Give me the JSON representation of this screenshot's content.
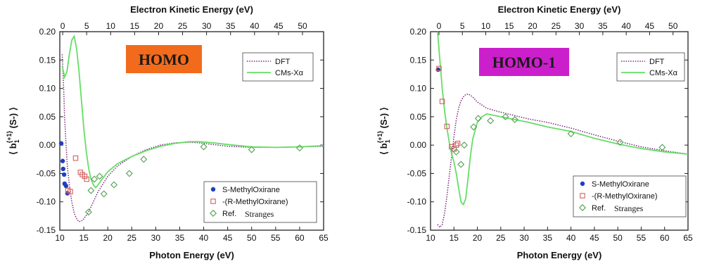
{
  "chart_data": [
    {
      "type": "line",
      "badge": {
        "text": "HOMO",
        "bg": "#f26b1c",
        "fg": "#1a1a1a"
      },
      "xlabel": "Photon Energy (eV)",
      "top_xlabel": "Electron Kinetic Energy (eV)",
      "ylabel_parts": [
        "⟨ b",
        "1",
        "{+1}",
        " (S-) ⟩"
      ],
      "xlim": [
        10,
        65
      ],
      "ylim": [
        -0.15,
        0.2
      ],
      "x_ticks": [
        10,
        15,
        20,
        25,
        30,
        35,
        40,
        45,
        50,
        55,
        60,
        65
      ],
      "y_ticks": [
        -0.15,
        -0.1,
        -0.05,
        0.0,
        0.05,
        0.1,
        0.15,
        0.2
      ],
      "y_tick_labels": [
        "-0.15",
        "-0.10",
        "-0.05",
        "0.00",
        "0.05",
        "0.10",
        "0.15",
        "0.20"
      ],
      "top_xlim": [
        -0.6,
        54.4
      ],
      "top_ticks": [
        0,
        5,
        10,
        15,
        20,
        25,
        30,
        35,
        40,
        45,
        50
      ],
      "series": [
        {
          "name": "DFT",
          "style": "dotted",
          "color": "#7a2a7a",
          "x": [
            10.5,
            10.8,
            11.0,
            11.3,
            11.6,
            12,
            12.5,
            13,
            13.5,
            14,
            14.5,
            15,
            16,
            17,
            18,
            20,
            22,
            25,
            28,
            31,
            34,
            37,
            39,
            42,
            45,
            50,
            55,
            60,
            65
          ],
          "y": [
            0.16,
            0.1,
            0.05,
            0.0,
            -0.04,
            -0.07,
            -0.1,
            -0.12,
            -0.13,
            -0.135,
            -0.134,
            -0.13,
            -0.118,
            -0.1,
            -0.082,
            -0.055,
            -0.037,
            -0.02,
            -0.008,
            0.0,
            0.004,
            0.005,
            0.004,
            0.001,
            -0.002,
            -0.004,
            -0.004,
            -0.003,
            -0.002
          ]
        },
        {
          "name": "CMs-Xα",
          "style": "solid",
          "color": "#66dd66",
          "x": [
            10.5,
            11,
            11.5,
            12,
            12.5,
            13,
            13.5,
            14,
            14.5,
            15,
            15.5,
            16,
            16.5,
            17,
            17.5,
            18,
            19,
            20,
            22,
            25,
            28,
            31,
            34,
            37,
            39,
            42,
            45,
            50,
            55,
            60,
            65
          ],
          "y": [
            0.14,
            0.12,
            0.13,
            0.16,
            0.185,
            0.192,
            0.17,
            0.13,
            0.08,
            0.03,
            -0.01,
            -0.04,
            -0.06,
            -0.07,
            -0.075,
            -0.07,
            -0.058,
            -0.047,
            -0.033,
            -0.02,
            -0.01,
            -0.002,
            0.003,
            0.006,
            0.006,
            0.004,
            0.001,
            -0.003,
            -0.004,
            -0.003,
            -0.001
          ]
        }
      ],
      "points": [
        {
          "name": "S-MethylOxirane",
          "marker": "filled-circle",
          "color": "#1f3fbf",
          "x": [
            10.3,
            10.6,
            10.7,
            10.9,
            11.0,
            11.3,
            11.6
          ],
          "y": [
            0.003,
            -0.028,
            -0.042,
            -0.052,
            -0.068,
            -0.072,
            -0.085
          ]
        },
        {
          "name": "-(R-MethylOxirane)",
          "marker": "open-square",
          "color": "#d06060",
          "x": [
            11.7,
            12.2,
            13.3,
            14.3,
            14.7,
            15.2,
            15.6
          ],
          "y": [
            -0.08,
            -0.082,
            -0.023,
            -0.048,
            -0.052,
            -0.055,
            -0.06
          ]
        },
        {
          "name": "Ref.",
          "marker": "open-diamond",
          "color": "#50a050",
          "x": [
            16.0,
            16.5,
            17.2,
            18.3,
            19.2,
            21.3,
            24.5,
            27.5,
            40.0,
            50.0,
            60.0
          ],
          "y": [
            -0.118,
            -0.08,
            -0.06,
            -0.055,
            -0.086,
            -0.07,
            -0.05,
            -0.025,
            -0.003,
            -0.008,
            -0.005
          ]
        }
      ],
      "legend_lines": [
        {
          "label": "DFT"
        },
        {
          "label": "CMs-Xα"
        }
      ],
      "legend_markers": [
        {
          "label": "S-MethylOxirane"
        },
        {
          "label": "-(R-MethylOxirane)"
        },
        {
          "label": "Ref.",
          "extra": "Stranges"
        }
      ]
    },
    {
      "type": "line",
      "badge": {
        "text": "HOMO-1",
        "bg": "#cc1fcc",
        "fg": "#1a1a1a"
      },
      "xlabel": "Photon Energy (eV)",
      "top_xlabel": "Electron Kinetic Energy (eV)",
      "ylabel_parts": [
        "⟨ b",
        "1",
        "{+1}",
        " (S-) ⟩"
      ],
      "xlim": [
        10,
        65
      ],
      "ylim": [
        -0.15,
        0.2
      ],
      "x_ticks": [
        10,
        15,
        20,
        25,
        30,
        35,
        40,
        45,
        50,
        55,
        60,
        65
      ],
      "y_ticks": [
        -0.15,
        -0.1,
        -0.05,
        0.0,
        0.05,
        0.1,
        0.15,
        0.2
      ],
      "y_tick_labels": [
        "-0.15",
        "-0.10",
        "-0.05",
        "0.00",
        "0.05",
        "0.10",
        "0.15",
        "0.20"
      ],
      "top_xlim": [
        -1.8,
        53.2
      ],
      "top_ticks": [
        0,
        5,
        10,
        15,
        20,
        25,
        30,
        35,
        40,
        45,
        50
      ],
      "series": [
        {
          "name": "DFT",
          "style": "dotted",
          "color": "#7a2a7a",
          "x": [
            11.5,
            12,
            12.5,
            13,
            13.5,
            14,
            14.5,
            15,
            15.5,
            16,
            16.5,
            17,
            17.5,
            18,
            18.5,
            19,
            20,
            22,
            25,
            28,
            31,
            35,
            40,
            45,
            50,
            55,
            60,
            65
          ],
          "y": [
            -0.14,
            -0.145,
            -0.14,
            -0.12,
            -0.09,
            -0.055,
            -0.02,
            0.015,
            0.045,
            0.065,
            0.078,
            0.085,
            0.089,
            0.09,
            0.088,
            0.085,
            0.076,
            0.065,
            0.058,
            0.052,
            0.046,
            0.04,
            0.03,
            0.018,
            0.007,
            -0.003,
            -0.01,
            -0.016
          ]
        },
        {
          "name": "CMs-Xα",
          "style": "solid",
          "color": "#66dd66",
          "x": [
            11.5,
            12,
            12.5,
            13,
            13.5,
            14,
            14.5,
            15,
            15.5,
            16,
            16.5,
            17,
            17.5,
            18,
            18.5,
            19,
            20,
            21,
            22,
            25,
            28,
            31,
            35,
            40,
            45,
            50,
            55,
            60,
            65
          ],
          "y": [
            0.2,
            0.15,
            0.1,
            0.06,
            0.03,
            0.005,
            -0.015,
            -0.03,
            -0.05,
            -0.075,
            -0.1,
            -0.105,
            -0.095,
            -0.06,
            -0.02,
            0.01,
            0.04,
            0.05,
            0.055,
            0.05,
            0.045,
            0.04,
            0.032,
            0.024,
            0.012,
            0.002,
            -0.006,
            -0.012,
            -0.016
          ]
        }
      ],
      "points": [
        {
          "name": "S-MethylOxirane",
          "marker": "filled-circle",
          "color": "#1f3fbf",
          "x": [
            11.6
          ],
          "y": [
            0.133
          ]
        },
        {
          "name": "-(R-MethylOxirane)",
          "marker": "open-square",
          "color": "#d06060",
          "x": [
            11.8,
            12.5,
            13.5,
            14.5,
            15.0,
            15.5,
            15.8
          ],
          "y": [
            0.135,
            0.077,
            0.033,
            -0.003,
            -0.007,
            0.0,
            0.003
          ]
        },
        {
          "name": "Ref.",
          "marker": "open-diamond",
          "color": "#50a050",
          "x": [
            15.5,
            16.5,
            17.2,
            19.2,
            20.2,
            22.8,
            26.0,
            28.0,
            40.0,
            50.5,
            59.5
          ],
          "y": [
            -0.012,
            -0.034,
            0.0,
            0.032,
            0.047,
            0.043,
            0.05,
            0.045,
            0.02,
            0.005,
            -0.004
          ]
        }
      ],
      "legend_lines": [
        {
          "label": "DFT"
        },
        {
          "label": "CMs-Xα"
        }
      ],
      "legend_markers": [
        {
          "label": "S-MethylOxirane"
        },
        {
          "label": "-(R-MethylOxirane)"
        },
        {
          "label": "Ref.",
          "extra": "Stranges"
        }
      ]
    }
  ]
}
